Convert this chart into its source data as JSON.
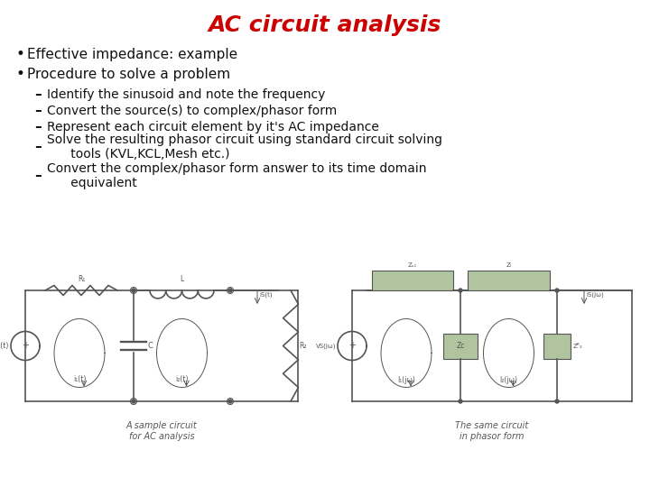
{
  "title": "AC circuit analysis",
  "title_color": "#cc0000",
  "title_fontsize": 18,
  "background_color": "#ffffff",
  "bullet1": "Effective impedance: example",
  "bullet2": "Procedure to solve a problem",
  "sub_bullets": [
    "Identify the sinusoid and note the frequency",
    "Convert the source(s) to complex/phasor form",
    "Represent each circuit element by it's AC impedance",
    "Solve the resulting phasor circuit using standard circuit solving\n      tools (KVL,KCL,Mesh etc.)",
    "Convert the complex/phasor form answer to its time domain\n      equivalent"
  ],
  "text_fontsize": 11,
  "sub_fontsize": 10,
  "text_color": "#111111",
  "caption1": "A sample circuit\nfor AC analysis",
  "caption2": "The same circuit\nin phasor form",
  "circuit_line_color": "#555555",
  "box_fill_color": "#b0c4a0",
  "circ_line_color": "#888888"
}
